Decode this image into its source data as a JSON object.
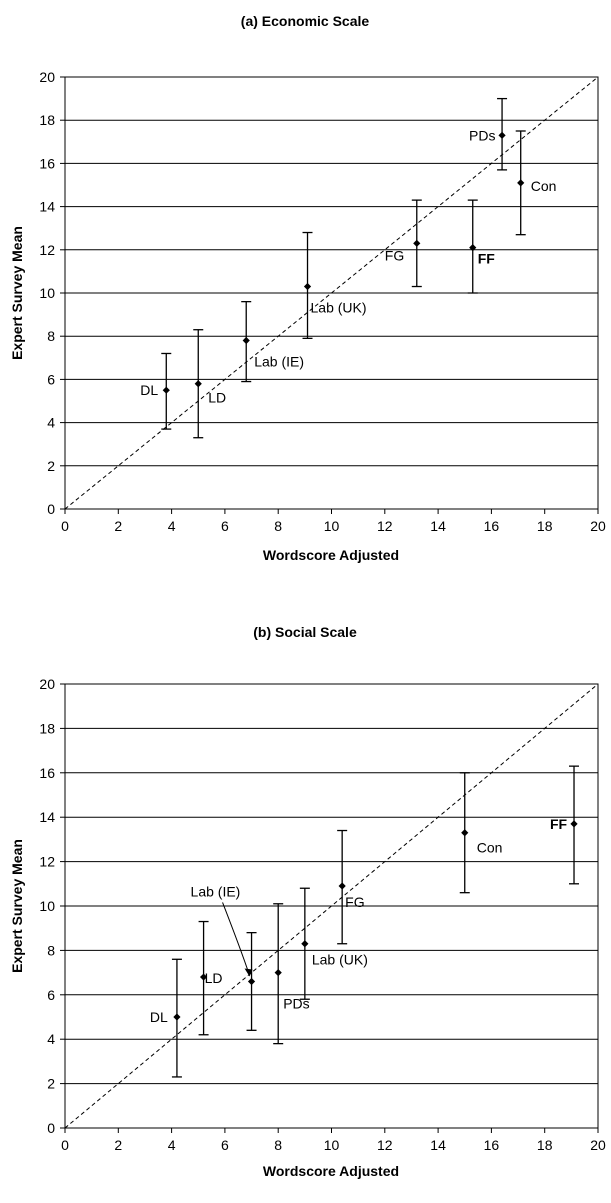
{
  "chart_data": [
    {
      "type": "scatter",
      "title": "(a) Economic Scale",
      "xlabel": "Wordscore Adjusted",
      "ylabel": "Expert Survey Mean",
      "xlim": [
        0,
        20
      ],
      "ylim": [
        0,
        20
      ],
      "xticks": [
        "0",
        "2",
        "4",
        "6",
        "8",
        "10",
        "12",
        "14",
        "16",
        "18",
        "20"
      ],
      "yticks": [
        "0",
        "2",
        "4",
        "6",
        "8",
        "10",
        "12",
        "14",
        "16",
        "18",
        "20"
      ],
      "grid": "horizontal",
      "reference_line": "diagonal dashed y = x",
      "points": [
        {
          "label": "DL",
          "x": 3.8,
          "y": 5.5,
          "err_low": 3.7,
          "err_high": 7.2
        },
        {
          "label": "LD",
          "x": 5.0,
          "y": 5.8,
          "err_low": 3.3,
          "err_high": 8.3
        },
        {
          "label": "Lab (IE)",
          "x": 6.8,
          "y": 7.8,
          "err_low": 5.9,
          "err_high": 9.6
        },
        {
          "label": "Lab (UK)",
          "x": 9.1,
          "y": 10.3,
          "err_low": 7.9,
          "err_high": 12.8
        },
        {
          "label": "FG",
          "x": 13.2,
          "y": 12.3,
          "err_low": 10.3,
          "err_high": 14.3
        },
        {
          "label": "FF",
          "x": 15.3,
          "y": 12.1,
          "err_low": 10.0,
          "err_high": 14.3,
          "bold": true
        },
        {
          "label": "PDs",
          "x": 16.4,
          "y": 17.3,
          "err_low": 15.7,
          "err_high": 19.0
        },
        {
          "label": "Con",
          "x": 17.1,
          "y": 15.1,
          "err_low": 12.7,
          "err_high": 17.5
        }
      ]
    },
    {
      "type": "scatter",
      "title": "(b) Social Scale",
      "xlabel": "Wordscore Adjusted",
      "ylabel": "Expert Survey Mean",
      "xlim": [
        0,
        20
      ],
      "ylim": [
        0,
        20
      ],
      "xticks": [
        "0",
        "2",
        "4",
        "6",
        "8",
        "10",
        "12",
        "14",
        "16",
        "18",
        "20"
      ],
      "yticks": [
        "0",
        "2",
        "4",
        "6",
        "8",
        "10",
        "12",
        "14",
        "16",
        "18",
        "20"
      ],
      "grid": "horizontal",
      "reference_line": "diagonal dashed y = x",
      "points": [
        {
          "label": "DL",
          "x": 4.2,
          "y": 5.0,
          "err_low": 2.3,
          "err_high": 7.6
        },
        {
          "label": "LD",
          "x": 5.2,
          "y": 6.8,
          "err_low": 4.2,
          "err_high": 9.3
        },
        {
          "label": "Lab (IE)",
          "x": 7.0,
          "y": 6.6,
          "err_low": 4.4,
          "err_high": 8.8,
          "callout": true
        },
        {
          "label": "PDs",
          "x": 8.0,
          "y": 7.0,
          "err_low": 3.8,
          "err_high": 10.1
        },
        {
          "label": "Lab (UK)",
          "x": 9.0,
          "y": 8.3,
          "err_low": 5.8,
          "err_high": 10.8
        },
        {
          "label": "FG",
          "x": 10.4,
          "y": 10.9,
          "err_low": 8.3,
          "err_high": 13.4
        },
        {
          "label": "Con",
          "x": 15.0,
          "y": 13.3,
          "err_low": 10.6,
          "err_high": 16.0
        },
        {
          "label": "FF",
          "x": 19.1,
          "y": 13.7,
          "err_low": 11.0,
          "err_high": 16.3,
          "bold": true
        }
      ]
    }
  ]
}
